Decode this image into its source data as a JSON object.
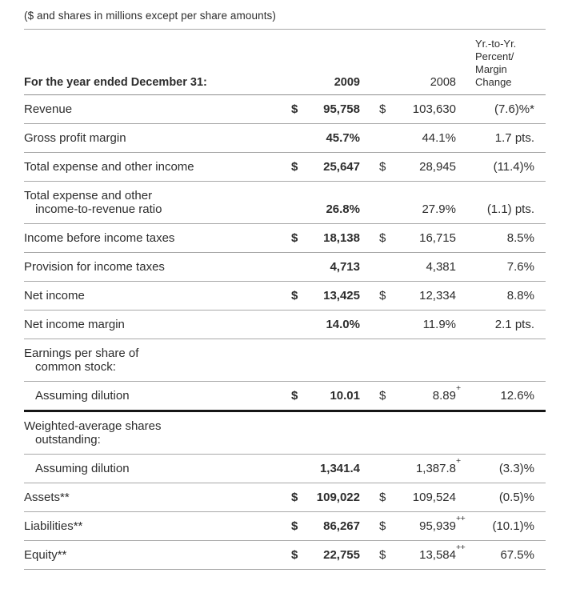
{
  "caption": "($ and shares in millions except per share amounts)",
  "colors": {
    "text": "#2d2d2d",
    "rule": "#a8a8a8",
    "heavy_rule": "#161616",
    "background": "#ffffff"
  },
  "table": {
    "header": {
      "label": "For the year ended December 31:",
      "y2009": "2009",
      "y2008": "2008",
      "change_lines": [
        "Yr.-to-Yr.",
        "Percent/",
        "Margin",
        "Change"
      ]
    },
    "rows": [
      {
        "id": "revenue",
        "label_lines": [
          "Revenue"
        ],
        "d2009": "$",
        "v2009": "95,758",
        "d2008": "$",
        "v2008": "103,630",
        "change": "(7.6)%*"
      },
      {
        "id": "gross-profit-margin",
        "label_lines": [
          "Gross profit margin"
        ],
        "v2009": "45.7%",
        "v2008": "44.1%",
        "change": "1.7 pts."
      },
      {
        "id": "total-expense-and-other-income",
        "label_lines": [
          "Total expense and other income"
        ],
        "d2009": "$",
        "v2009": "25,647",
        "d2008": "$",
        "v2008": "28,945",
        "change": "(11.4)%"
      },
      {
        "id": "expense-to-revenue-ratio",
        "label_lines": [
          "Total expense and other",
          "income-to-revenue ratio"
        ],
        "v2009": "26.8%",
        "v2008": "27.9%",
        "change": "(1.1) pts."
      },
      {
        "id": "income-before-income-taxes",
        "label_lines": [
          "Income before income taxes"
        ],
        "d2009": "$",
        "v2009": "18,138",
        "d2008": "$",
        "v2008": "16,715",
        "change": "8.5%"
      },
      {
        "id": "provision-for-income-taxes",
        "label_lines": [
          "Provision for income taxes"
        ],
        "v2009": "4,713",
        "v2008": "4,381",
        "change": "7.6%"
      },
      {
        "id": "net-income",
        "label_lines": [
          "Net income"
        ],
        "d2009": "$",
        "v2009": "13,425",
        "d2008": "$",
        "v2008": "12,334",
        "change": "8.8%"
      },
      {
        "id": "net-income-margin",
        "label_lines": [
          "Net income margin"
        ],
        "v2009": "14.0%",
        "v2008": "11.9%",
        "change": "2.1 pts."
      },
      {
        "id": "eps-section",
        "section": true,
        "label_lines": [
          "Earnings per share of",
          "common stock:"
        ]
      },
      {
        "id": "eps-assuming-dilution",
        "indent": true,
        "thick": true,
        "label_lines": [
          "Assuming dilution"
        ],
        "d2009": "$",
        "v2009": "10.01",
        "d2008": "$",
        "v2008": "8.89",
        "sup2008": "+",
        "change": "12.6%"
      },
      {
        "id": "weighted-average-shares-section",
        "section": true,
        "label_lines": [
          "Weighted-average shares",
          "outstanding:"
        ]
      },
      {
        "id": "shares-assuming-dilution",
        "indent": true,
        "label_lines": [
          "Assuming dilution"
        ],
        "v2009": "1,341.4",
        "v2008": "1,387.8",
        "sup2008": "+",
        "change": "(3.3)%"
      },
      {
        "id": "assets",
        "label_lines": [
          "Assets**"
        ],
        "d2009": "$",
        "v2009": "109,022",
        "d2008": "$",
        "v2008": "109,524",
        "change": "(0.5)%"
      },
      {
        "id": "liabilities",
        "label_lines": [
          "Liabilities**"
        ],
        "d2009": "$",
        "v2009": "86,267",
        "d2008": "$",
        "v2008": "95,939",
        "sup2008": "++",
        "change": "(10.1)%"
      },
      {
        "id": "equity",
        "label_lines": [
          "Equity**"
        ],
        "d2009": "$",
        "v2009": "22,755",
        "d2008": "$",
        "v2008": "13,584",
        "sup2008": "++",
        "change": "67.5%"
      }
    ]
  }
}
